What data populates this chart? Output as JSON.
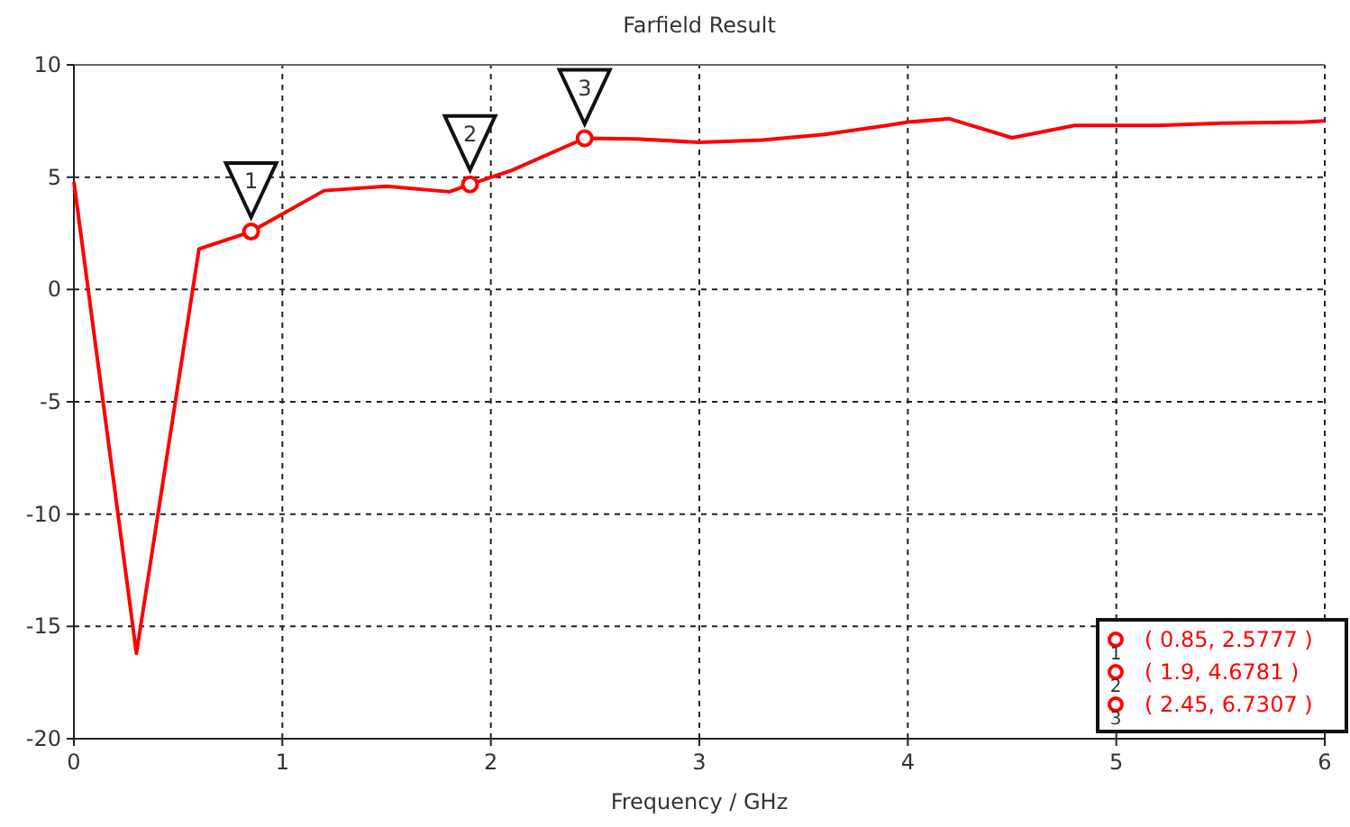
{
  "chart_data": {
    "type": "line",
    "title": "Farfield Result",
    "xlabel": "Frequency / GHz",
    "x": [
      0,
      0.3,
      0.6,
      0.85,
      1.2,
      1.5,
      1.8,
      1.9,
      2.1,
      2.45,
      2.7,
      3.0,
      3.3,
      3.6,
      3.9,
      4.0,
      4.2,
      4.5,
      4.8,
      5.0,
      5.2,
      5.5,
      5.9,
      6.0
    ],
    "series": [
      {
        "color": "#ff0000",
        "values": [
          4.8,
          -16.2,
          1.8,
          2.5777,
          4.4,
          4.6,
          4.35,
          4.6781,
          5.3,
          6.7307,
          6.7,
          6.55,
          6.65,
          6.9,
          7.3,
          7.45,
          7.6,
          6.75,
          7.3,
          7.3,
          7.3,
          7.4,
          7.45,
          7.5
        ]
      },
      {
        "type": "scatter",
        "marker": "circle",
        "color": "#ff0000",
        "x": [
          0.85,
          1.9,
          2.45
        ],
        "values": [
          2.5777,
          4.6781,
          6.7307
        ]
      }
    ],
    "annotations": [
      {
        "text": "1",
        "x": 0.85,
        "y": 2.5777
      },
      {
        "text": "2",
        "x": 1.9,
        "y": 4.6781
      },
      {
        "text": "3",
        "x": 2.45,
        "y": 6.7307
      },
      "( 0.85, 2.5777 )",
      "( 1.9, 4.6781 )",
      "( 2.45, 6.7307 )"
    ],
    "xlim": [
      0,
      6
    ],
    "xticks": [
      0,
      1,
      2,
      3,
      4,
      5,
      6
    ],
    "ylim": [
      -20,
      10
    ],
    "yticks": [
      -20,
      -15,
      -10,
      -5,
      0,
      5,
      10
    ],
    "grid": true,
    "line_style": "solid"
  }
}
